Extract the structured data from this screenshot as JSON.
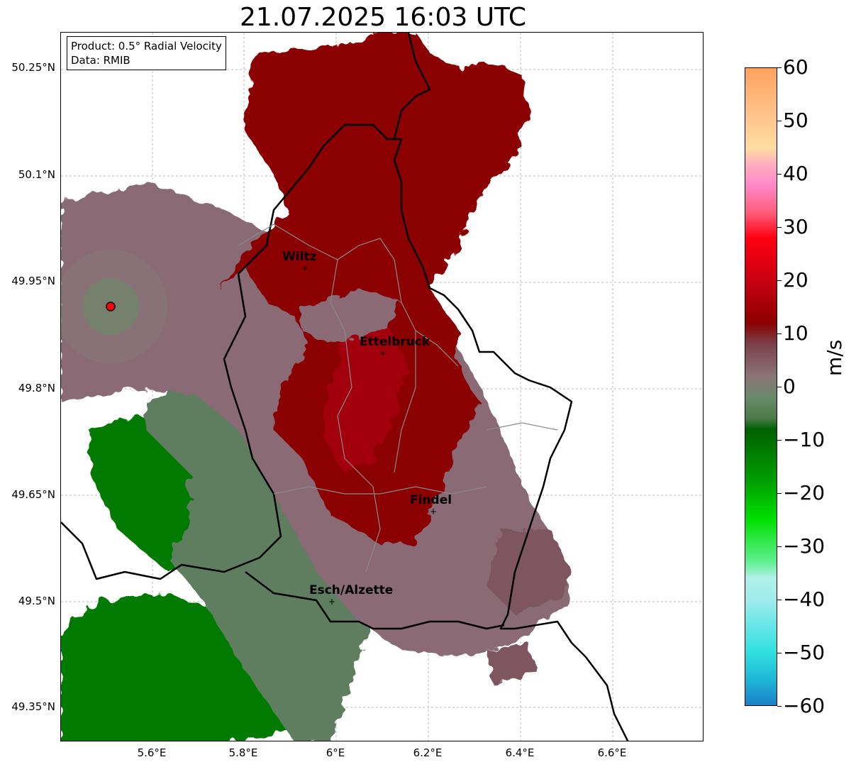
{
  "title": "21.07.2025 16:03 UTC",
  "info_box": {
    "product": "Product: 0.5° Radial Velocity",
    "data": "Data: RMIB"
  },
  "map": {
    "lat_labels": [
      "50.25°N",
      "50.1°N",
      "49.95°N",
      "49.8°N",
      "49.65°N",
      "49.5°N",
      "49.35°N"
    ],
    "lon_labels": [
      "5.6°E",
      "5.8°E",
      "6°E",
      "6.2°E",
      "6.4°E",
      "6.6°E"
    ],
    "cities": [
      "Wiltz",
      "Ettelbruck",
      "Findel",
      "Esch/Alzette"
    ],
    "radar_marker": "radar-site",
    "colors": {
      "dark_red": "#8b0000",
      "red": "#a50a14",
      "mauve": "#836570",
      "grey_green": "#5e7a5e",
      "dark_green": "#006d00",
      "border": "#000000",
      "admin": "#888888"
    }
  },
  "colorbar": {
    "unit": "m/s",
    "min": -60,
    "max": 60,
    "ticks": [
      "60",
      "50",
      "40",
      "30",
      "20",
      "10",
      "0",
      "−10",
      "−20",
      "−30",
      "−40",
      "−50",
      "−60"
    ],
    "stops": [
      {
        "v": 60,
        "c": "#ffa260"
      },
      {
        "v": 50,
        "c": "#ffc890"
      },
      {
        "v": 45,
        "c": "#ffdca0"
      },
      {
        "v": 42,
        "c": "#ffb0c0"
      },
      {
        "v": 38,
        "c": "#ff88c8"
      },
      {
        "v": 33,
        "c": "#ff6080"
      },
      {
        "v": 28,
        "c": "#ff0010"
      },
      {
        "v": 20,
        "c": "#c80010"
      },
      {
        "v": 12,
        "c": "#8b0000"
      },
      {
        "v": 8,
        "c": "#7a4048"
      },
      {
        "v": 2,
        "c": "#8a7478"
      },
      {
        "v": -2,
        "c": "#6a8a6a"
      },
      {
        "v": -6,
        "c": "#4a7a4a"
      },
      {
        "v": -8,
        "c": "#006000"
      },
      {
        "v": -18,
        "c": "#00a000"
      },
      {
        "v": -25,
        "c": "#00e000"
      },
      {
        "v": -33,
        "c": "#60f090"
      },
      {
        "v": -36,
        "c": "#b0f0e8"
      },
      {
        "v": -40,
        "c": "#a0ecec"
      },
      {
        "v": -50,
        "c": "#30e0e0"
      },
      {
        "v": -55,
        "c": "#20b8d8"
      },
      {
        "v": -60,
        "c": "#1a80c8"
      }
    ]
  }
}
